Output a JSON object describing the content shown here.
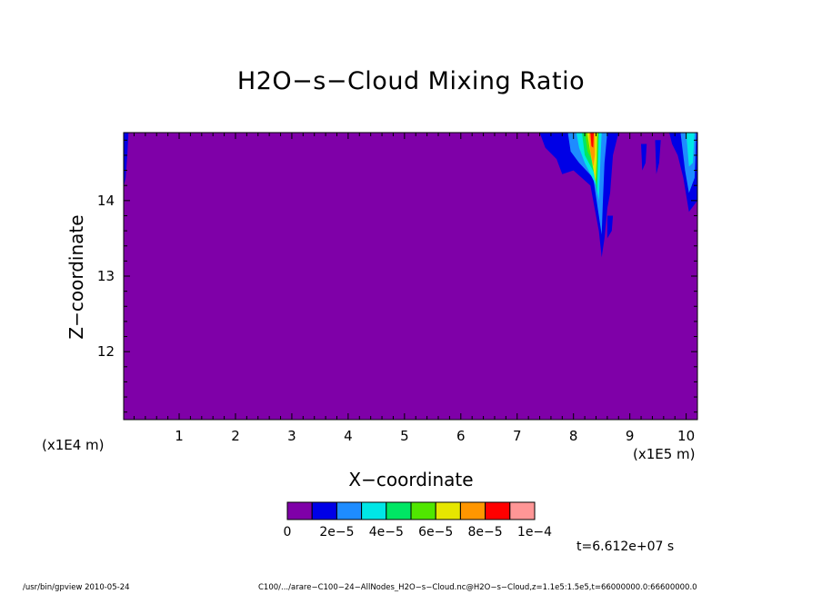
{
  "chart_data": {
    "type": "heatmap",
    "title": "H2O−s−Cloud Mixing Ratio",
    "xlabel": "X−coordinate",
    "ylabel": "Z−coordinate",
    "x_multiplier": "(x1E5 m)",
    "y_multiplier": "(x1E4 m)",
    "xlim": [
      0.015,
      10.2
    ],
    "ylim": [
      11.1,
      14.9
    ],
    "x_ticks": [
      1,
      2,
      3,
      4,
      5,
      6,
      7,
      8,
      9,
      10
    ],
    "x_tick_labels": [
      "1",
      "2",
      "3",
      "4",
      "5",
      "6",
      "7",
      "8",
      "9",
      "10"
    ],
    "y_ticks": [
      12,
      13,
      14
    ],
    "y_tick_labels": [
      "12",
      "13",
      "14"
    ],
    "background_value": 0,
    "colorbar": {
      "levels": [
        0,
        1e-05,
        2e-05,
        3e-05,
        4e-05,
        5e-05,
        6e-05,
        7e-05,
        8e-05,
        9e-05,
        0.0001
      ],
      "colors": [
        "#7f00a8",
        "#0000e6",
        "#1e8cff",
        "#00e6e6",
        "#00e664",
        "#50e600",
        "#e6e600",
        "#ff9600",
        "#ff0000",
        "#ff9696"
      ],
      "labels": [
        "0",
        "2e−5",
        "4e−5",
        "6e−5",
        "8e−5",
        "1e−4"
      ]
    },
    "features": [
      {
        "level": 1,
        "polygon": [
          [
            0.02,
            14.9
          ],
          [
            0.1,
            14.9
          ],
          [
            0.08,
            14.6
          ],
          [
            0.05,
            14.3
          ],
          [
            0.02,
            14.2
          ]
        ]
      },
      {
        "level": 1,
        "polygon": [
          [
            7.4,
            14.9
          ],
          [
            8.8,
            14.9
          ],
          [
            8.7,
            14.6
          ],
          [
            8.65,
            14.1
          ],
          [
            8.6,
            13.9
          ],
          [
            8.55,
            13.5
          ],
          [
            8.5,
            13.25
          ],
          [
            8.45,
            13.6
          ],
          [
            8.3,
            14.2
          ],
          [
            8.0,
            14.4
          ],
          [
            7.8,
            14.35
          ],
          [
            7.7,
            14.55
          ],
          [
            7.5,
            14.7
          ]
        ]
      },
      {
        "level": 1,
        "polygon": [
          [
            8.6,
            13.8
          ],
          [
            8.7,
            13.8
          ],
          [
            8.68,
            13.6
          ],
          [
            8.6,
            13.5
          ]
        ]
      },
      {
        "level": 1,
        "polygon": [
          [
            9.7,
            14.9
          ],
          [
            10.2,
            14.9
          ],
          [
            10.2,
            14.0
          ],
          [
            10.05,
            13.85
          ],
          [
            9.95,
            14.3
          ],
          [
            9.85,
            14.6
          ],
          [
            9.75,
            14.75
          ]
        ]
      },
      {
        "level": 1,
        "polygon": [
          [
            9.2,
            14.75
          ],
          [
            9.3,
            14.75
          ],
          [
            9.28,
            14.5
          ],
          [
            9.22,
            14.4
          ]
        ]
      },
      {
        "level": 1,
        "polygon": [
          [
            9.45,
            14.8
          ],
          [
            9.55,
            14.8
          ],
          [
            9.52,
            14.5
          ],
          [
            9.47,
            14.35
          ]
        ]
      },
      {
        "level": 2,
        "polygon": [
          [
            7.9,
            14.9
          ],
          [
            8.6,
            14.9
          ],
          [
            8.55,
            14.5
          ],
          [
            8.52,
            13.95
          ],
          [
            8.5,
            13.55
          ],
          [
            8.46,
            13.75
          ],
          [
            8.35,
            14.3
          ],
          [
            8.1,
            14.5
          ],
          [
            7.95,
            14.65
          ]
        ]
      },
      {
        "level": 2,
        "polygon": [
          [
            9.9,
            14.9
          ],
          [
            10.18,
            14.9
          ],
          [
            10.15,
            14.3
          ],
          [
            10.05,
            14.1
          ],
          [
            9.98,
            14.4
          ]
        ]
      },
      {
        "level": 3,
        "polygon": [
          [
            8.05,
            14.9
          ],
          [
            8.5,
            14.9
          ],
          [
            8.48,
            14.55
          ],
          [
            8.45,
            14.0
          ],
          [
            8.4,
            14.2
          ],
          [
            8.2,
            14.5
          ],
          [
            8.1,
            14.7
          ]
        ]
      },
      {
        "level": 3,
        "polygon": [
          [
            10.0,
            14.9
          ],
          [
            10.15,
            14.9
          ],
          [
            10.12,
            14.5
          ],
          [
            10.05,
            14.45
          ]
        ]
      },
      {
        "level": 4,
        "polygon": [
          [
            8.15,
            14.9
          ],
          [
            8.45,
            14.9
          ],
          [
            8.44,
            14.6
          ],
          [
            8.42,
            14.1
          ],
          [
            8.38,
            14.35
          ],
          [
            8.2,
            14.6
          ]
        ]
      },
      {
        "level": 5,
        "polygon": [
          [
            8.2,
            14.9
          ],
          [
            8.44,
            14.9
          ],
          [
            8.43,
            14.6
          ],
          [
            8.41,
            14.2
          ],
          [
            8.35,
            14.5
          ],
          [
            8.25,
            14.65
          ]
        ]
      },
      {
        "level": 6,
        "polygon": [
          [
            8.24,
            14.9
          ],
          [
            8.42,
            14.9
          ],
          [
            8.41,
            14.55
          ],
          [
            8.39,
            14.25
          ],
          [
            8.32,
            14.55
          ]
        ]
      },
      {
        "level": 7,
        "polygon": [
          [
            8.28,
            14.9
          ],
          [
            8.38,
            14.9
          ],
          [
            8.38,
            14.6
          ],
          [
            8.35,
            14.45
          ],
          [
            8.3,
            14.65
          ]
        ]
      },
      {
        "level": 8,
        "polygon": [
          [
            8.3,
            14.9
          ],
          [
            8.36,
            14.9
          ],
          [
            8.35,
            14.7
          ],
          [
            8.32,
            14.72
          ]
        ]
      }
    ]
  },
  "time_label": "t=6.612e+07 s",
  "footer": {
    "left": "/usr/bin/gpview   2010-05-24",
    "right": "C100/.../arare−C100−24−AllNodes_H2O−s−Cloud.nc@H2O−s−Cloud,z=1.1e5:1.5e5,t=66000000.0:66600000.0"
  }
}
